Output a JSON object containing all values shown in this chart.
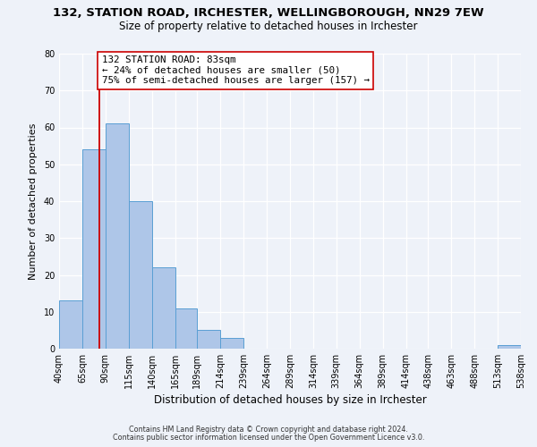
{
  "title_line1": "132, STATION ROAD, IRCHESTER, WELLINGBOROUGH, NN29 7EW",
  "title_line2": "Size of property relative to detached houses in Irchester",
  "xlabel": "Distribution of detached houses by size in Irchester",
  "ylabel": "Number of detached properties",
  "bin_edges": [
    40,
    65,
    90,
    115,
    140,
    165,
    189,
    214,
    239,
    264,
    289,
    314,
    339,
    364,
    389,
    414,
    438,
    463,
    488,
    513,
    538
  ],
  "bin_labels": [
    "40sqm",
    "65sqm",
    "90sqm",
    "115sqm",
    "140sqm",
    "165sqm",
    "189sqm",
    "214sqm",
    "239sqm",
    "264sqm",
    "289sqm",
    "314sqm",
    "339sqm",
    "364sqm",
    "389sqm",
    "414sqm",
    "438sqm",
    "463sqm",
    "488sqm",
    "513sqm",
    "538sqm"
  ],
  "counts": [
    13,
    54,
    61,
    40,
    22,
    11,
    5,
    3,
    0,
    0,
    0,
    0,
    0,
    0,
    0,
    0,
    0,
    0,
    0,
    1
  ],
  "bar_color": "#aec6e8",
  "bar_edge_color": "#5a9fd4",
  "property_size": 83,
  "vline_color": "#cc0000",
  "annotation_line1": "132 STATION ROAD: 83sqm",
  "annotation_line2": "← 24% of detached houses are smaller (50)",
  "annotation_line3": "75% of semi-detached houses are larger (157) →",
  "annotation_box_edgecolor": "#cc0000",
  "annotation_box_facecolor": "white",
  "ylim": [
    0,
    80
  ],
  "yticks": [
    0,
    10,
    20,
    30,
    40,
    50,
    60,
    70,
    80
  ],
  "footer_line1": "Contains HM Land Registry data © Crown copyright and database right 2024.",
  "footer_line2": "Contains public sector information licensed under the Open Government Licence v3.0.",
  "background_color": "#eef2f9",
  "title1_fontsize": 9.5,
  "title2_fontsize": 8.5,
  "axis_label_fontsize": 8.5,
  "tick_fontsize": 7,
  "annotation_fontsize": 7.8,
  "footer_fontsize": 5.8
}
